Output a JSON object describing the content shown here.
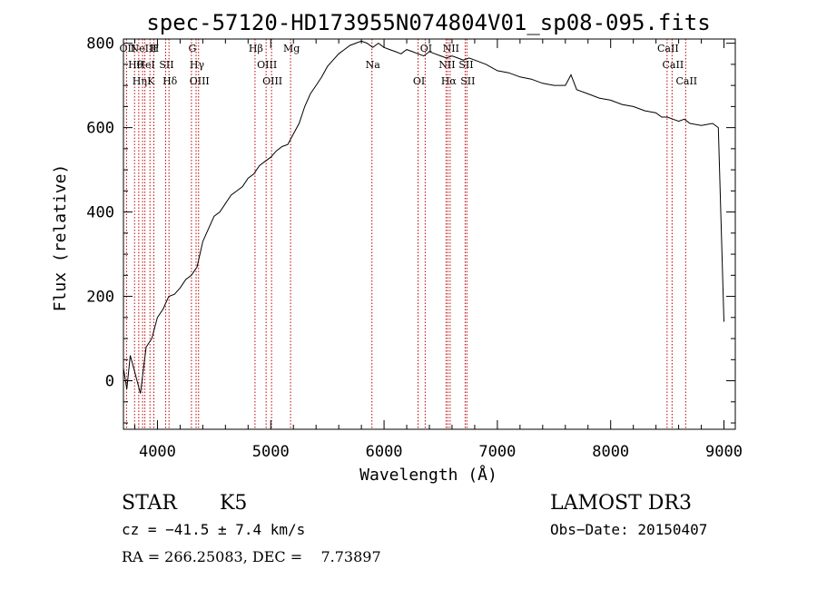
{
  "chart_data": {
    "type": "line",
    "title": "spec-57120-HD173955N074804V01_sp08-095.fits",
    "xlabel": "Wavelength (Å)",
    "ylabel": "Flux (relative)",
    "xlim": [
      3700,
      9100
    ],
    "ylim": [
      -115,
      810
    ],
    "x_ticks": [
      4000,
      5000,
      6000,
      7000,
      8000,
      9000
    ],
    "y_ticks": [
      0,
      200,
      400,
      600,
      800
    ],
    "grid": false,
    "series": [
      {
        "x": [
          3700,
          3730,
          3760,
          3800,
          3850,
          3900,
          3950,
          4000,
          4050,
          4100,
          4150,
          4200,
          4250,
          4300,
          4350,
          4400,
          4450,
          4500,
          4550,
          4600,
          4650,
          4700,
          4750,
          4800,
          4850,
          4900,
          4950,
          5000,
          5050,
          5100,
          5150,
          5200,
          5250,
          5300,
          5350,
          5400,
          5450,
          5500,
          5550,
          5600,
          5650,
          5700,
          5750,
          5800,
          5850,
          5900,
          5950,
          6000,
          6050,
          6100,
          6150,
          6200,
          6250,
          6300,
          6350,
          6400,
          6450,
          6500,
          6550,
          6600,
          6650,
          6700,
          6750,
          6800,
          6900,
          7000,
          7100,
          7200,
          7300,
          7400,
          7500,
          7600,
          7650,
          7700,
          7800,
          7900,
          8000,
          8100,
          8200,
          8300,
          8400,
          8450,
          8500,
          8550,
          8600,
          8650,
          8700,
          8800,
          8900,
          8950,
          9000
        ],
        "y": [
          30,
          -20,
          60,
          20,
          -30,
          80,
          100,
          150,
          170,
          200,
          205,
          220,
          240,
          250,
          270,
          330,
          360,
          390,
          400,
          420,
          440,
          450,
          460,
          480,
          490,
          510,
          520,
          530,
          545,
          555,
          560,
          585,
          610,
          650,
          680,
          700,
          720,
          745,
          760,
          775,
          785,
          795,
          800,
          805,
          800,
          790,
          800,
          790,
          785,
          780,
          775,
          785,
          780,
          775,
          770,
          780,
          775,
          770,
          765,
          770,
          765,
          760,
          765,
          760,
          750,
          735,
          730,
          720,
          715,
          705,
          700,
          700,
          725,
          690,
          680,
          670,
          665,
          655,
          650,
          640,
          635,
          625,
          625,
          620,
          615,
          620,
          610,
          605,
          610,
          600,
          140
        ]
      }
    ],
    "lines": [
      {
        "wl": 3727,
        "labels": [
          "OII"
        ]
      },
      {
        "wl": 3798,
        "labels": [
          "Hθ"
        ]
      },
      {
        "wl": 3835,
        "labels": [
          "Hη"
        ]
      },
      {
        "wl": 3869,
        "labels": [
          "NeIII"
        ]
      },
      {
        "wl": 3889,
        "labels": [
          "HeI"
        ]
      },
      {
        "wl": 3934,
        "labels": [
          "K"
        ]
      },
      {
        "wl": 3968,
        "labels": [
          "H"
        ]
      },
      {
        "wl": 4072,
        "labels": [
          "SII"
        ]
      },
      {
        "wl": 4102,
        "labels": [
          "Hδ"
        ]
      },
      {
        "wl": 4300,
        "labels": [
          "G"
        ]
      },
      {
        "wl": 4341,
        "labels": [
          "Hγ"
        ]
      },
      {
        "wl": 4363,
        "labels": [
          "OIII"
        ]
      },
      {
        "wl": 4861,
        "labels": [
          "Hβ"
        ]
      },
      {
        "wl": 4959,
        "labels": [
          "OIII"
        ]
      },
      {
        "wl": 5007,
        "labels": [
          "OIII"
        ]
      },
      {
        "wl": 5175,
        "labels": [
          "Mg"
        ]
      },
      {
        "wl": 5893,
        "labels": [
          "Na"
        ]
      },
      {
        "wl": 6300,
        "labels": [
          "OI"
        ]
      },
      {
        "wl": 6363,
        "labels": [
          "OI"
        ]
      },
      {
        "wl": 6548,
        "labels": [
          "NII"
        ]
      },
      {
        "wl": 6563,
        "labels": [
          "Hα"
        ]
      },
      {
        "wl": 6583,
        "labels": [
          "NII"
        ]
      },
      {
        "wl": 6716,
        "labels": [
          "SII"
        ]
      },
      {
        "wl": 6731,
        "labels": [
          "SII"
        ]
      },
      {
        "wl": 8498,
        "labels": [
          "CaII"
        ]
      },
      {
        "wl": 8542,
        "labels": [
          "CaII"
        ]
      },
      {
        "wl": 8662,
        "labels": [
          "CaII"
        ]
      }
    ]
  },
  "info": {
    "object_class": "STAR",
    "subclass": "K5",
    "survey": "LAMOST DR3",
    "cz": "cz = −41.5 ± 7.4 km/s",
    "obs_date": "Obs−Date: 20150407",
    "coords": "RA = 266.25083, DEC =    7.73897"
  },
  "colors": {
    "spectrum": "#000000",
    "line_markers": "#c00000",
    "axes": "#000000"
  }
}
